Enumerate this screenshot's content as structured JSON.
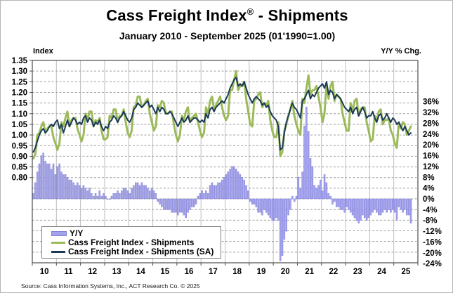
{
  "title": {
    "main": "Cass Freight Index",
    "reg": "®",
    "suffix": " - Shipments"
  },
  "subtitle": "January 2010 - September 2025 (01'1990=1.00)",
  "left_axis_title": "Index",
  "right_axis_title": "Y/Y % Chg.",
  "source": "Source: Cass Information Systems, Inc., ACT Research Co. © 2025",
  "legend": [
    {
      "label": "Y/Y",
      "type": "bar",
      "color": "#a3a2ec",
      "edge": "#807fd4"
    },
    {
      "label": "Cass Freight Index - Shipments",
      "type": "line",
      "color": "#9cba5a"
    },
    {
      "label": "Cass Freight Index - Shipments (SA)",
      "type": "line",
      "color": "#1b3a57"
    }
  ],
  "chart_data": {
    "type": "combo",
    "x_start": "2010-01",
    "x_end": "2025-09",
    "x_months_total": 192,
    "x_tick_labels": [
      "10",
      "11",
      "12",
      "13",
      "14",
      "15",
      "16",
      "17",
      "18",
      "19",
      "20",
      "21",
      "22",
      "23",
      "24",
      "25"
    ],
    "left_axis": {
      "label": "Index",
      "max": 1.35,
      "min": 0.4,
      "tick_labels": [
        "1.35",
        "1.30",
        "1.25",
        "1.20",
        "1.15",
        "1.10",
        "1.05",
        "1.00",
        "0.95",
        "0.90",
        "0.85",
        "0.80"
      ]
    },
    "right_axis": {
      "label": "Y/Y % Chg.",
      "max_pct": 51.3,
      "min_pct": -23.7,
      "tick_labels": [
        "36%",
        "32%",
        "28%",
        "24%",
        "20%",
        "16%",
        "12%",
        "8%",
        "4%",
        "0%",
        "-4%",
        "-8%",
        "-12%",
        "-16%",
        "-20%",
        "-24%"
      ]
    },
    "grid": {
      "h_step": 0.05,
      "h_top": 1.3,
      "h_bottom": 0.45,
      "vertical_at_year_start": true
    },
    "series": [
      {
        "name": "Y/Y",
        "type": "bar",
        "axis": "right",
        "unit": "%",
        "values": [
          2,
          6,
          10,
          13,
          16,
          17,
          14,
          13,
          13,
          11,
          13,
          9,
          12,
          13,
          10,
          9,
          9,
          8,
          7,
          7,
          6,
          5,
          6,
          5,
          4,
          5,
          4,
          3,
          4,
          2,
          1,
          2,
          1,
          3,
          1,
          2,
          1,
          0,
          0,
          1,
          2,
          2,
          3,
          2,
          3,
          4,
          4,
          3,
          2,
          4,
          5,
          6,
          6,
          5,
          6,
          5,
          5,
          4,
          3,
          4,
          3,
          2,
          -1,
          -2,
          -3,
          -4,
          -4,
          -4,
          -4,
          -5,
          -5,
          -5,
          -6,
          -5,
          -5,
          -6,
          -7,
          -5,
          -4,
          -3,
          -3,
          -2,
          1,
          2,
          3,
          2,
          3,
          2,
          5,
          6,
          5,
          5,
          6,
          6,
          7,
          8,
          9,
          10,
          11,
          12,
          12,
          11,
          10,
          9,
          8,
          7,
          5,
          3,
          -1,
          -2,
          -2,
          -3,
          -5,
          -5,
          -6,
          -4,
          -5,
          -6,
          -7,
          -8,
          -8,
          -7,
          -8,
          -23,
          -21,
          -15,
          -12,
          -6,
          -4,
          1,
          -1,
          1,
          8,
          4,
          10,
          27,
          34,
          25,
          15,
          12,
          5,
          4,
          5,
          7,
          3,
          9,
          6,
          2,
          1,
          -2,
          -1,
          -3,
          -3,
          -4,
          -4,
          -5,
          -3,
          -4,
          -5,
          -6,
          -7,
          -8,
          -9,
          -8,
          -6,
          -7,
          -8,
          -7,
          -6,
          -5,
          -4,
          -5,
          -6,
          -6,
          -5,
          -4,
          -5,
          -4,
          -5,
          -4,
          -5,
          -8,
          -3,
          -4,
          -5,
          -4,
          -6,
          -6,
          -9
        ]
      },
      {
        "name": "Cass Freight Index - Shipments",
        "type": "line",
        "axis": "left",
        "values": [
          0.89,
          0.91,
          1.0,
          1.01,
          1.04,
          1.06,
          1.01,
          1.03,
          1.04,
          1.04,
          0.99,
          0.96,
          0.93,
          0.96,
          1.06,
          1.04,
          1.08,
          1.11,
          1.04,
          1.07,
          1.08,
          1.08,
          1.03,
          1.0,
          0.97,
          1.0,
          1.1,
          1.07,
          1.11,
          1.11,
          1.04,
          1.07,
          1.06,
          1.08,
          1.02,
          0.98,
          0.98,
          0.99,
          1.09,
          1.08,
          1.12,
          1.12,
          1.06,
          1.09,
          1.09,
          1.12,
          1.06,
          1.01,
          0.99,
          1.02,
          1.13,
          1.14,
          1.18,
          1.18,
          1.13,
          1.14,
          1.16,
          1.17,
          1.1,
          1.06,
          1.02,
          1.04,
          1.14,
          1.13,
          1.16,
          1.15,
          1.1,
          1.1,
          1.11,
          1.11,
          1.05,
          1.0,
          0.97,
          1.0,
          1.09,
          1.07,
          1.11,
          1.13,
          1.06,
          1.08,
          1.09,
          1.1,
          1.06,
          1.02,
          0.99,
          1.01,
          1.13,
          1.1,
          1.16,
          1.18,
          1.12,
          1.14,
          1.16,
          1.18,
          1.13,
          1.09,
          1.07,
          1.09,
          1.21,
          1.21,
          1.26,
          1.3,
          1.21,
          1.23,
          1.23,
          1.25,
          1.17,
          1.11,
          1.05,
          1.04,
          1.16,
          1.17,
          1.19,
          1.2,
          1.13,
          1.15,
          1.14,
          1.16,
          1.07,
          1.02,
          0.99,
          0.99,
          1.06,
          0.9,
          0.92,
          1.02,
          1.05,
          1.09,
          1.12,
          1.16,
          1.09,
          1.05,
          1.02,
          1.0,
          1.17,
          1.15,
          1.22,
          1.28,
          1.19,
          1.21,
          1.21,
          1.23,
          1.18,
          1.13,
          1.06,
          1.1,
          1.24,
          1.17,
          1.23,
          1.25,
          1.16,
          1.19,
          1.18,
          1.17,
          1.1,
          1.06,
          1.02,
          1.02,
          1.15,
          1.11,
          1.16,
          1.17,
          1.09,
          1.12,
          1.13,
          1.13,
          1.06,
          1.02,
          0.97,
          0.98,
          1.09,
          1.07,
          1.11,
          1.12,
          1.05,
          1.07,
          1.07,
          1.08,
          1.02,
          1.0,
          0.96,
          0.94,
          1.06,
          1.03,
          1.06,
          1.05,
          1.0,
          1.02,
          1.04
        ]
      },
      {
        "name": "Cass Freight Index - Shipments (SA)",
        "type": "line",
        "axis": "left",
        "values": [
          0.92,
          0.94,
          0.97,
          1.0,
          1.02,
          1.03,
          1.01,
          1.02,
          1.04,
          1.05,
          1.04,
          1.06,
          1.07,
          1.03,
          1.05,
          1.01,
          1.04,
          1.07,
          1.04,
          1.06,
          1.08,
          1.07,
          1.05,
          1.06,
          1.05,
          1.08,
          1.09,
          1.06,
          1.08,
          1.07,
          1.04,
          1.06,
          1.05,
          1.07,
          1.04,
          1.02,
          1.04,
          1.03,
          1.06,
          1.07,
          1.09,
          1.08,
          1.06,
          1.08,
          1.09,
          1.11,
          1.09,
          1.07,
          1.06,
          1.08,
          1.12,
          1.13,
          1.15,
          1.14,
          1.13,
          1.14,
          1.15,
          1.16,
          1.13,
          1.14,
          1.12,
          1.1,
          1.13,
          1.11,
          1.13,
          1.12,
          1.1,
          1.1,
          1.11,
          1.1,
          1.08,
          1.06,
          1.04,
          1.06,
          1.08,
          1.06,
          1.07,
          1.09,
          1.06,
          1.07,
          1.08,
          1.08,
          1.07,
          1.06,
          1.07,
          1.06,
          1.1,
          1.08,
          1.12,
          1.13,
          1.11,
          1.13,
          1.14,
          1.15,
          1.16,
          1.15,
          1.17,
          1.19,
          1.22,
          1.24,
          1.26,
          1.27,
          1.23,
          1.24,
          1.23,
          1.25,
          1.22,
          1.19,
          1.17,
          1.15,
          1.17,
          1.18,
          1.17,
          1.16,
          1.14,
          1.15,
          1.13,
          1.14,
          1.11,
          1.09,
          1.08,
          1.07,
          1.04,
          0.93,
          0.94,
          1.01,
          1.06,
          1.09,
          1.12,
          1.15,
          1.13,
          1.12,
          1.1,
          1.08,
          1.16,
          1.17,
          1.19,
          1.21,
          1.17,
          1.19,
          1.18,
          1.2,
          1.22,
          1.23,
          1.24,
          1.22,
          1.25,
          1.19,
          1.21,
          1.2,
          1.17,
          1.19,
          1.18,
          1.17,
          1.15,
          1.13,
          1.12,
          1.11,
          1.13,
          1.1,
          1.12,
          1.13,
          1.09,
          1.11,
          1.13,
          1.11,
          1.08,
          1.09,
          1.09,
          1.11,
          1.08,
          1.06,
          1.09,
          1.1,
          1.07,
          1.08,
          1.1,
          1.08,
          1.06,
          1.08,
          1.07,
          1.05,
          1.06,
          1.04,
          1.02,
          1.04,
          1.02,
          1.0,
          1.01
        ]
      }
    ]
  }
}
